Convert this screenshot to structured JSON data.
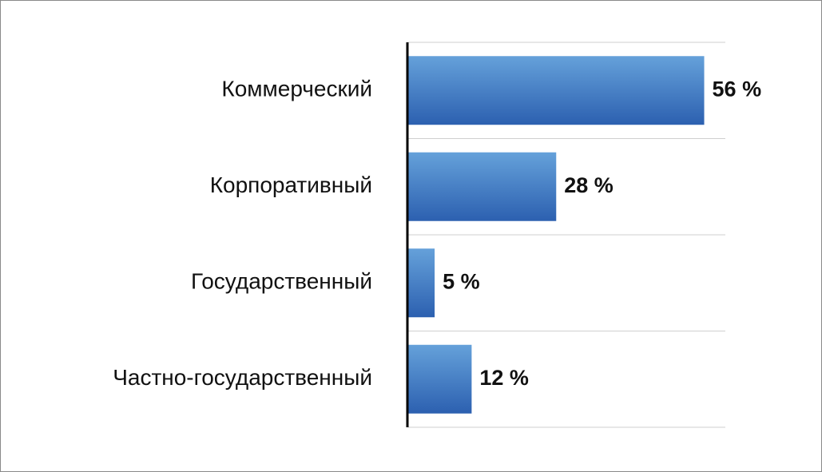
{
  "chart_data": {
    "type": "bar",
    "orientation": "horizontal",
    "categories": [
      "Коммерческий",
      "Корпоративный",
      "Государственный",
      "Частно-государственный"
    ],
    "values": [
      56,
      28,
      5,
      12
    ],
    "value_labels": [
      "56 %",
      "28 %",
      "5 %",
      "12 %"
    ],
    "xlim": [
      0,
      60
    ]
  }
}
